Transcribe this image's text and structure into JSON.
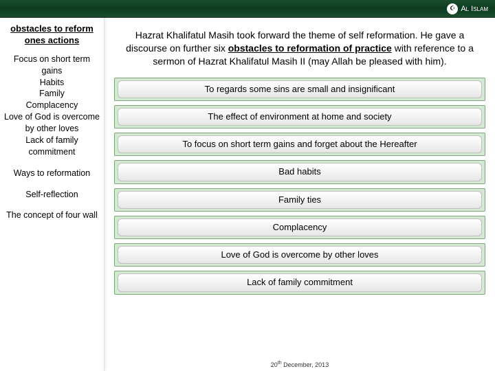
{
  "brand": {
    "label": "Al Islam"
  },
  "sidebar": {
    "heading": "obstacles to reform ones actions",
    "block1": "Focus on short term gains\nHabits\nFamily\nComplacency\nLove of God is overcome by other loves\nLack of family commitment",
    "heading2": "Ways to reformation",
    "block2": "Self-reflection",
    "block3": "The concept of four wall"
  },
  "intro": {
    "pre": "Hazrat Khalifatul Masih took forward the theme of self reformation. He gave a discourse on further six ",
    "boldUnderline": "obstacles to reformation of practice",
    "post": " with reference to a sermon of Hazrat Khalifatul Masih II (may Allah be pleased with him)."
  },
  "pills": [
    "To regards some sins are small and insignificant",
    "The effect of environment at home and society",
    "To focus on short term gains and forget about the Hereafter",
    "Bad habits",
    "Family ties",
    "Complacency",
    "Love of God is overcome by other loves",
    "Lack of family commitment"
  ],
  "footer": {
    "day": "20",
    "ord": "th",
    "rest": " December, 2013"
  },
  "colors": {
    "pill_bg": "#d5e8d4",
    "pill_border": "#7aa874",
    "topbar": "#1a4d2e"
  }
}
